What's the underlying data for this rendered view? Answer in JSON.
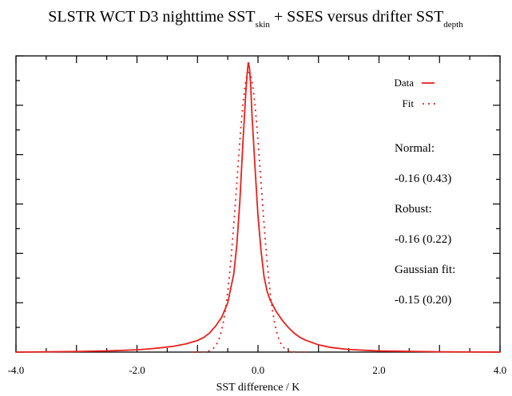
{
  "chart_data": {
    "type": "line",
    "title": {
      "prefix": "SLSTR WCT D3 nighttime SST",
      "sub1": "skin",
      "middle": " + SSES versus drifter SST",
      "sub2": "depth"
    },
    "xlabel": "SST difference / K",
    "ylabel": "",
    "xlim": [
      -4.0,
      4.0
    ],
    "ylim": [
      0,
      1.0
    ],
    "x_ticks": [
      "-4.0",
      "-2.0",
      "0.0",
      "2.0",
      "4.0"
    ],
    "x_tick_values": [
      -4.0,
      -2.0,
      0.0,
      2.0,
      4.0
    ],
    "y_ticks_count": 6,
    "grid": false,
    "legend_position": "top-right",
    "series": [
      {
        "name": "Data",
        "style": "solid",
        "color": "#e8201c",
        "x": [
          -4.0,
          -3.0,
          -2.5,
          -2.0,
          -1.8,
          -1.6,
          -1.4,
          -1.2,
          -1.0,
          -0.9,
          -0.8,
          -0.7,
          -0.6,
          -0.5,
          -0.4,
          -0.35,
          -0.3,
          -0.25,
          -0.2,
          -0.18,
          -0.16,
          -0.14,
          -0.12,
          -0.1,
          -0.05,
          0.0,
          0.05,
          0.1,
          0.15,
          0.2,
          0.25,
          0.3,
          0.4,
          0.5,
          0.6,
          0.7,
          0.8,
          1.0,
          1.2,
          1.5,
          2.0,
          3.0,
          4.0
        ],
        "y": [
          0.0,
          0.002,
          0.004,
          0.008,
          0.011,
          0.015,
          0.02,
          0.028,
          0.04,
          0.05,
          0.066,
          0.09,
          0.12,
          0.17,
          0.27,
          0.37,
          0.52,
          0.72,
          0.9,
          0.96,
          1.0,
          0.98,
          0.92,
          0.82,
          0.64,
          0.47,
          0.35,
          0.26,
          0.21,
          0.18,
          0.16,
          0.14,
          0.11,
          0.085,
          0.065,
          0.05,
          0.04,
          0.025,
          0.016,
          0.009,
          0.004,
          0.001,
          0.0
        ]
      },
      {
        "name": "Fit",
        "style": "dotted",
        "color": "#e8201c",
        "type": "gaussian",
        "mean": -0.15,
        "sd": 0.2,
        "peak": 0.965
      }
    ],
    "annotations": [
      "Normal:",
      "-0.16 (0.43)",
      "Robust:",
      "-0.16 (0.22)",
      "Gaussian fit:",
      "-0.15 (0.20)"
    ]
  }
}
